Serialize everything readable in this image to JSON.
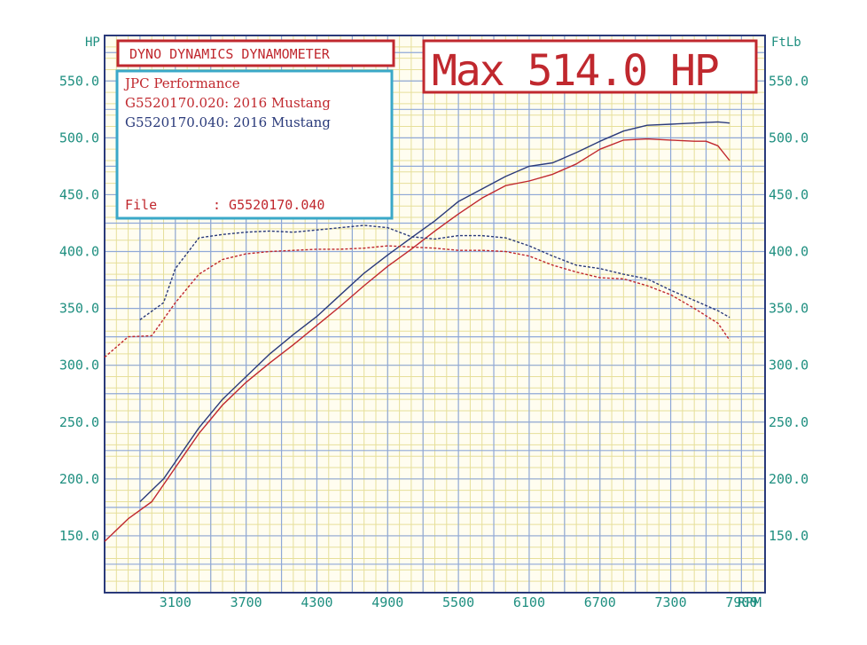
{
  "title_box": {
    "label": "DYNO DYNAMICS DYNAMOMETER"
  },
  "max_box": {
    "label": "Max 514.0 HP"
  },
  "info_box": {
    "line1": "JPC Performance",
    "line2": "G5520170.020: 2016 Mustang",
    "line3": "G5520170.040: 2016 Mustang",
    "file_label": "File",
    "file_value": ": G5520170.040"
  },
  "colors": {
    "background": "#fffdf0",
    "grid_major": "#8fa8d8",
    "grid_minor": "#e6df9a",
    "axis_text": "#1f8f80",
    "frame": "#2a3a7a",
    "run1": "#c0282e",
    "run2": "#2a3a7a",
    "info_border": "#3aa8c8"
  },
  "chart_data": {
    "type": "line",
    "title": "DYNO DYNAMICS DYNAMOMETER",
    "xlabel": "RPM",
    "ylabel_left": "HP",
    "ylabel_right": "FtLb",
    "xlim": [
      2500,
      8100
    ],
    "ylim": [
      100,
      590
    ],
    "grid": true,
    "x_ticks": [
      "3100",
      "3700",
      "4300",
      "4900",
      "5500",
      "6100",
      "6700",
      "7300",
      "7900"
    ],
    "x_unit_label": "RPM",
    "y_ticks_left": [
      "150.0",
      "200.0",
      "250.0",
      "300.0",
      "350.0",
      "400.0",
      "450.0",
      "500.0",
      "550.0"
    ],
    "y_ticks_right": [
      "150.0",
      "200.0",
      "250.0",
      "300.0",
      "350.0",
      "400.0",
      "450.0",
      "500.0",
      "550.0"
    ],
    "y_unit_left": "HP",
    "y_unit_right": "FtLb",
    "series": [
      {
        "name": "G5520170.020: 2016 Mustang",
        "kind": "power",
        "color": "#c0282e",
        "dash": "solid",
        "x": [
          2500,
          2700,
          2900,
          3100,
          3300,
          3500,
          3700,
          3900,
          4100,
          4300,
          4500,
          4700,
          4900,
          5100,
          5300,
          5500,
          5700,
          5900,
          6100,
          6300,
          6500,
          6700,
          6900,
          7100,
          7300,
          7500,
          7600,
          7700,
          7800
        ],
        "y": [
          145,
          165,
          180,
          210,
          240,
          265,
          285,
          302,
          318,
          335,
          352,
          370,
          387,
          402,
          418,
          433,
          447,
          458,
          462,
          468,
          477,
          490,
          498,
          499,
          498,
          497,
          497,
          493,
          480
        ]
      },
      {
        "name": "G5520170.040: 2016 Mustang",
        "kind": "power",
        "color": "#2a3a7a",
        "dash": "solid",
        "x": [
          2800,
          3000,
          3100,
          3300,
          3500,
          3700,
          3900,
          4100,
          4300,
          4500,
          4700,
          4900,
          5100,
          5300,
          5500,
          5700,
          5900,
          6100,
          6300,
          6500,
          6700,
          6900,
          7100,
          7300,
          7500,
          7700,
          7800
        ],
        "y": [
          180,
          200,
          215,
          245,
          270,
          290,
          310,
          327,
          343,
          362,
          381,
          397,
          412,
          427,
          444,
          455,
          466,
          475,
          478,
          487,
          497,
          506,
          511,
          512,
          513,
          514,
          513
        ]
      },
      {
        "name": "G5520170.020: 2016 Mustang",
        "kind": "torque",
        "color": "#c0282e",
        "dash": "dash",
        "x": [
          2500,
          2700,
          2900,
          3100,
          3300,
          3500,
          3700,
          3900,
          4100,
          4300,
          4500,
          4700,
          4900,
          5100,
          5300,
          5500,
          5700,
          5900,
          6100,
          6300,
          6500,
          6700,
          6900,
          7100,
          7300,
          7500,
          7700,
          7800
        ],
        "y": [
          307,
          325,
          326,
          355,
          380,
          393,
          398,
          400,
          401,
          402,
          402,
          403,
          405,
          404,
          403,
          401,
          401,
          400,
          396,
          388,
          382,
          377,
          376,
          370,
          362,
          350,
          337,
          322
        ]
      },
      {
        "name": "G5520170.040: 2016 Mustang",
        "kind": "torque",
        "color": "#2a3a7a",
        "dash": "dash",
        "x": [
          2800,
          3000,
          3100,
          3300,
          3500,
          3700,
          3900,
          4100,
          4300,
          4500,
          4700,
          4900,
          5100,
          5300,
          5500,
          5700,
          5900,
          6100,
          6300,
          6500,
          6700,
          6900,
          7100,
          7300,
          7500,
          7700,
          7800
        ],
        "y": [
          340,
          355,
          385,
          412,
          415,
          417,
          418,
          417,
          419,
          421,
          423,
          421,
          413,
          411,
          414,
          414,
          412,
          405,
          396,
          388,
          385,
          380,
          376,
          366,
          357,
          348,
          342
        ]
      }
    ]
  }
}
